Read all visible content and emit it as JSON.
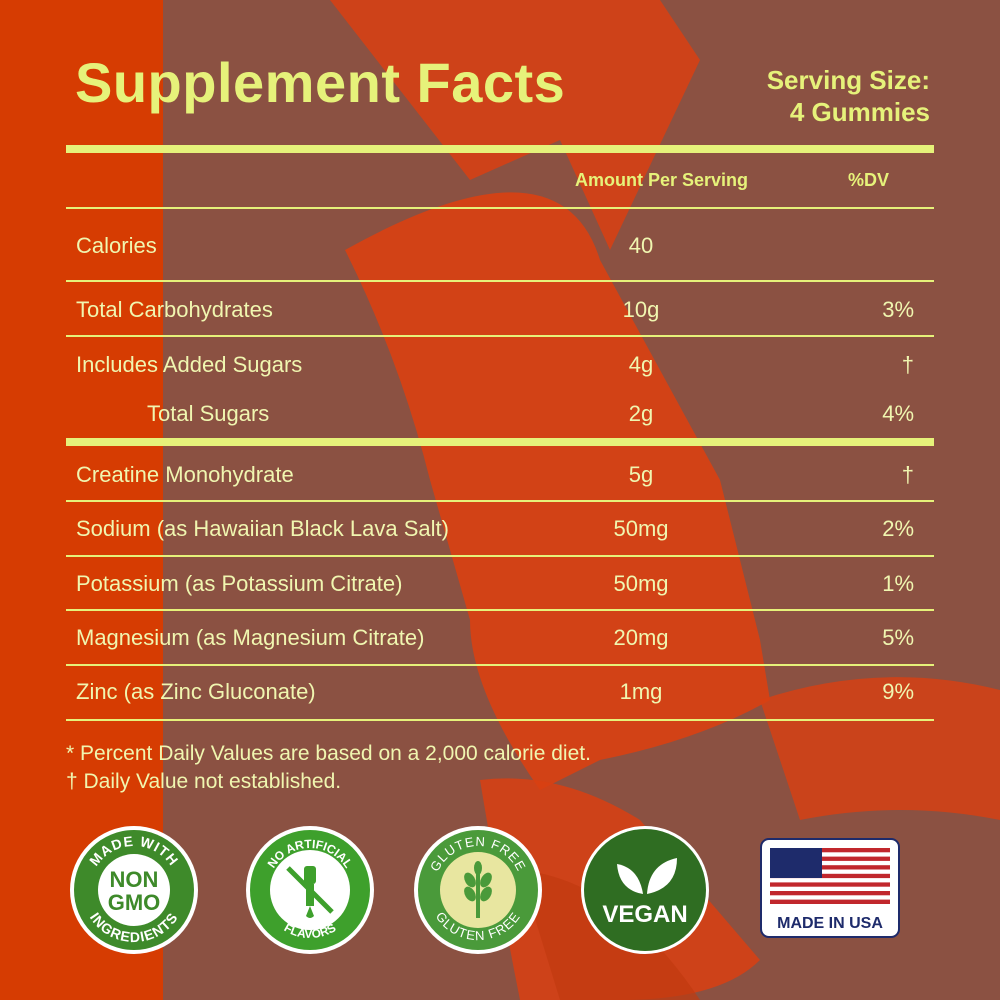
{
  "title": "Supplement Facts",
  "serving": {
    "line1": "Serving Size:",
    "line2": "4 Gummies"
  },
  "headers": {
    "amount": "Amount Per Serving",
    "dv": "%DV"
  },
  "rows": [
    {
      "name": "Calories",
      "amount": "40",
      "dv": ""
    },
    {
      "name": "Total Carbohydrates",
      "amount": "10g",
      "dv": "3%"
    },
    {
      "name": "Includes Added Sugars",
      "amount": "4g",
      "dv": "†"
    },
    {
      "name": "Total Sugars",
      "amount": "2g",
      "dv": "4%"
    },
    {
      "name": "Creatine Monohydrate",
      "amount": "5g",
      "dv": "†"
    },
    {
      "name": "Sodium (as Hawaiian Black Lava Salt)",
      "amount": "50mg",
      "dv": "2%"
    },
    {
      "name": "Potassium (as Potassium Citrate)",
      "amount": "50mg",
      "dv": "1%"
    },
    {
      "name": "Magnesium (as Magnesium Citrate)",
      "amount": "20mg",
      "dv": "5%"
    },
    {
      "name": "Zinc (as Zinc Gluconate)",
      "amount": "1mg",
      "dv": "9%"
    }
  ],
  "footnotes": {
    "line1": "* Percent Daily Values are based on a 2,000 calorie diet.",
    "line2": "† Daily Value not established."
  },
  "badges": {
    "nongmo": {
      "top": "MADE WITH",
      "mid1": "NON",
      "mid2": "GMO",
      "bottom": "INGREDIENTS"
    },
    "noartificial": {
      "top": "NO ARTIFICIAL",
      "bottom": "FLAVORS"
    },
    "glutenfree": {
      "top": "GLUTEN FREE",
      "bottom": "GLUTEN FREE"
    },
    "vegan": {
      "label": "VEGAN"
    },
    "usa": {
      "label": "MADE IN USA"
    }
  },
  "colors": {
    "accent": "#e6f27a",
    "left_band": "#d63c02",
    "background": "#8b5142",
    "gummy": "#d94012",
    "badge_green": "#3e8a2a"
  }
}
